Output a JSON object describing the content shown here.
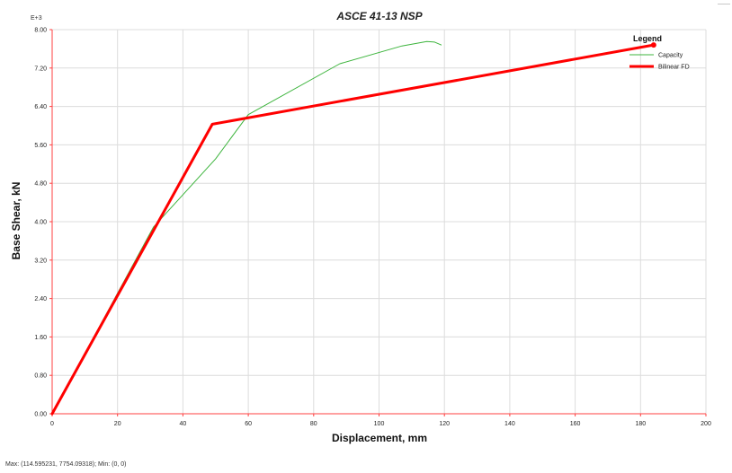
{
  "chart_data": {
    "type": "line",
    "title": "ASCE 41-13 NSP",
    "xlabel": "Displacement, mm",
    "ylabel": "Base Shear, kN",
    "y_multiplier_label": "E+3",
    "xlim": [
      0,
      200
    ],
    "ylim": [
      0,
      8000
    ],
    "x_ticks": [
      0,
      20,
      40,
      60,
      80,
      100,
      120,
      140,
      160,
      180,
      200
    ],
    "x_tick_labels": [
      "0",
      "20",
      "40",
      "60",
      "80",
      "100",
      "120",
      "140",
      "160",
      "180",
      "200"
    ],
    "y_ticks": [
      0,
      800,
      1600,
      2400,
      3200,
      4000,
      4800,
      5600,
      6400,
      7200,
      8000
    ],
    "y_tick_labels": [
      "0.00",
      "0.80",
      "1.60",
      "2.40",
      "3.20",
      "4.00",
      "4.80",
      "5.60",
      "6.40",
      "7.20",
      "8.00"
    ],
    "grid": true,
    "legend": {
      "title": "Legend",
      "position": "top-right"
    },
    "series": [
      {
        "name": "Capacity",
        "color": "#3cb43c",
        "x": [
          0,
          31,
          50,
          60,
          88,
          107,
          114.6,
          117,
          119
        ],
        "y": [
          0,
          3890,
          5310,
          6230,
          7290,
          7660,
          7754,
          7740,
          7680
        ]
      },
      {
        "name": "Bilinear FD",
        "color": "#ff0000",
        "x": [
          0,
          49,
          184
        ],
        "y": [
          0,
          6030,
          7680
        ]
      }
    ]
  },
  "status": {
    "text": "Max: (114.595231, 7754.09318);   Min: (0, 0)"
  }
}
